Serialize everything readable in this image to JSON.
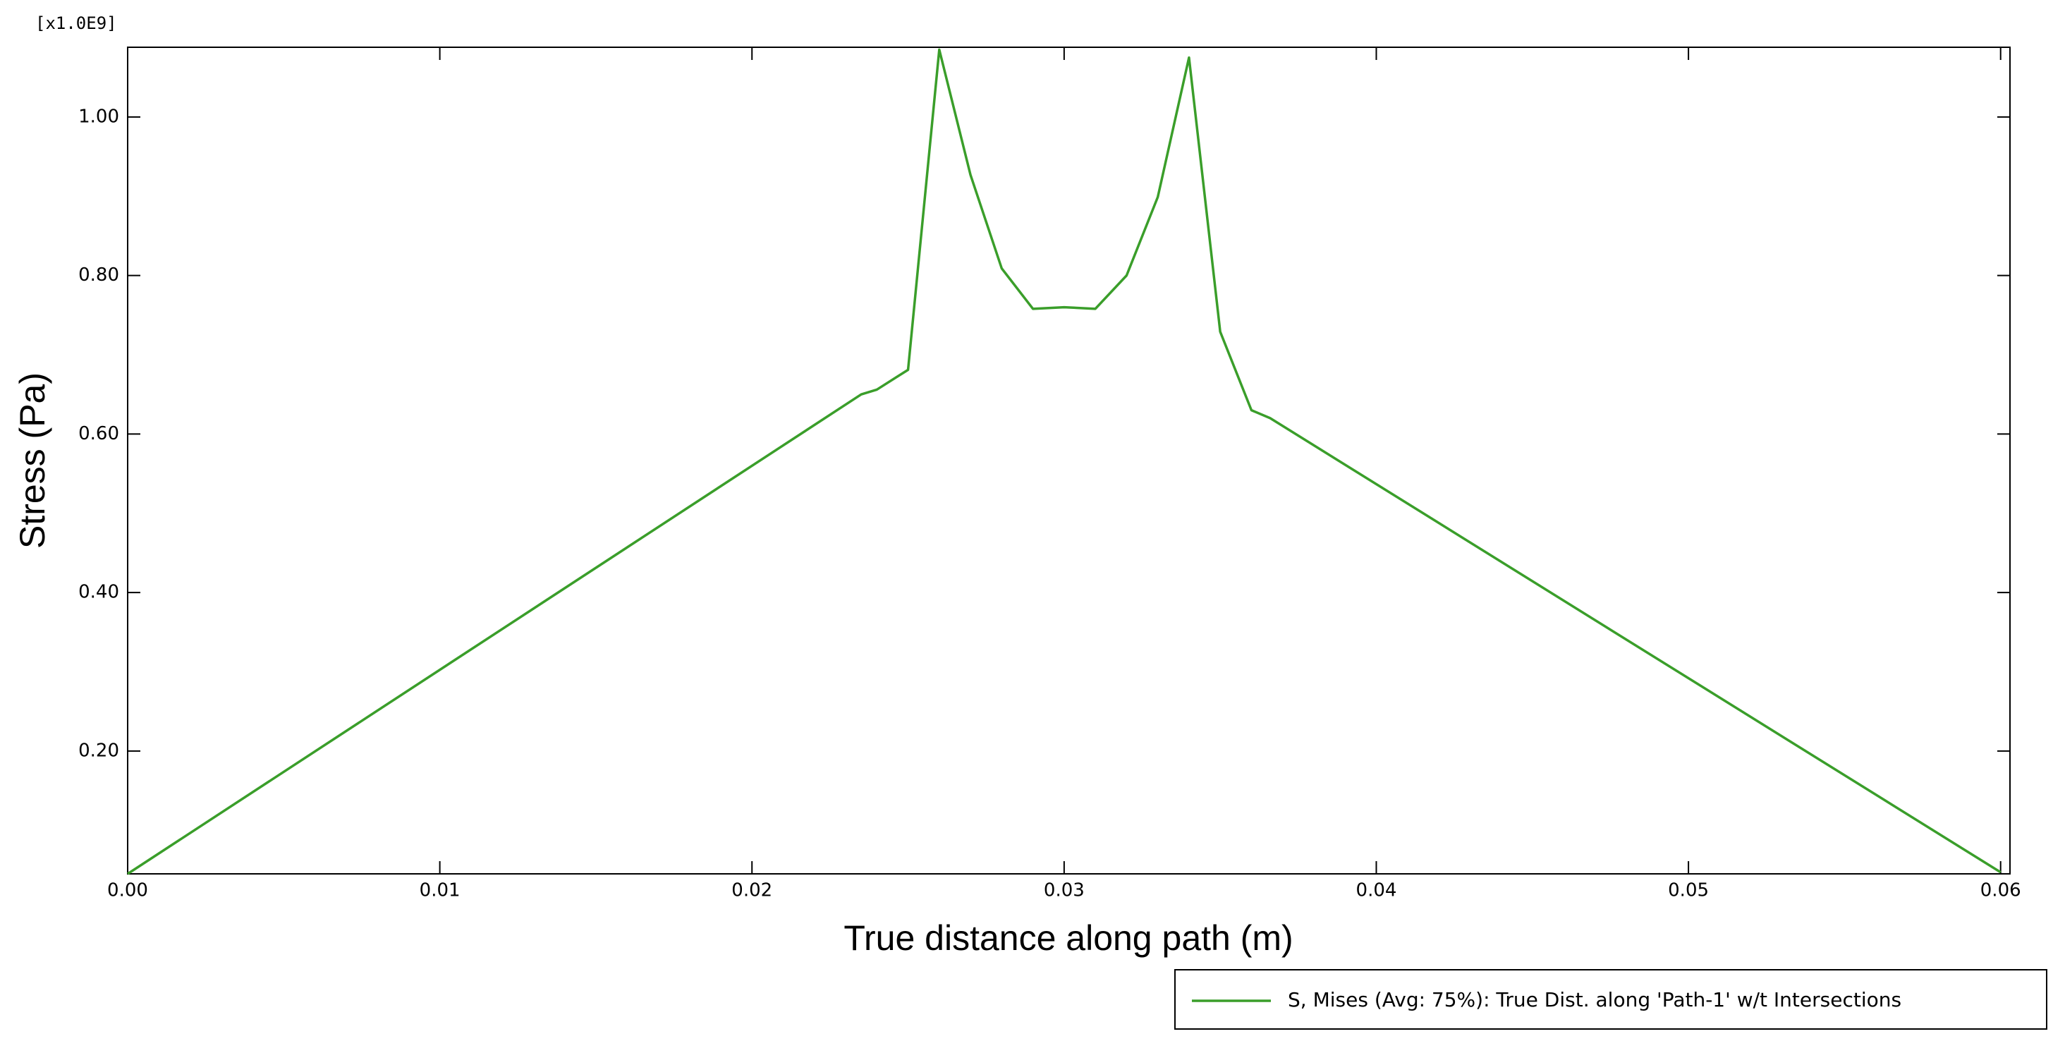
{
  "chart_data": {
    "type": "line",
    "y_multiplier": "[x1.0E9]",
    "xlabel": "True distance along path (m)",
    "ylabel": "Stress (Pa)",
    "x": [
      0,
      0.0235,
      0.024,
      0.025,
      0.026,
      0.027,
      0.028,
      0.029,
      0.03,
      0.031,
      0.032,
      0.033,
      0.034,
      0.035,
      0.036,
      0.0366,
      0.06
    ],
    "series": [
      {
        "name": "S, Mises (Avg: 75%): True Dist. along 'Path-1' w/t Intersections",
        "color": "#3a9e2a",
        "values": [
          0.045,
          0.65,
          0.656,
          0.681,
          1.085,
          0.927,
          0.809,
          0.758,
          0.76,
          0.758,
          0.8,
          0.899,
          1.075,
          0.729,
          0.63,
          0.62,
          0.047
        ]
      }
    ],
    "xlim": [
      0,
      0.0603
    ],
    "ylim": [
      0.045,
      1.088
    ],
    "xticks": [
      {
        "value": 0,
        "label": "0.00"
      },
      {
        "value": 0.01,
        "label": "0.01"
      },
      {
        "value": 0.02,
        "label": "0.02"
      },
      {
        "value": 0.03,
        "label": "0.03"
      },
      {
        "value": 0.04,
        "label": "0.04"
      },
      {
        "value": 0.05,
        "label": "0.05"
      },
      {
        "value": 0.06,
        "label": "0.06"
      }
    ],
    "yticks": [
      {
        "value": 0.2,
        "label": "0.20"
      },
      {
        "value": 0.4,
        "label": "0.40"
      },
      {
        "value": 0.6,
        "label": "0.60"
      },
      {
        "value": 0.8,
        "label": "0.80"
      },
      {
        "value": 1.0,
        "label": "1.00"
      }
    ],
    "grid": false
  }
}
